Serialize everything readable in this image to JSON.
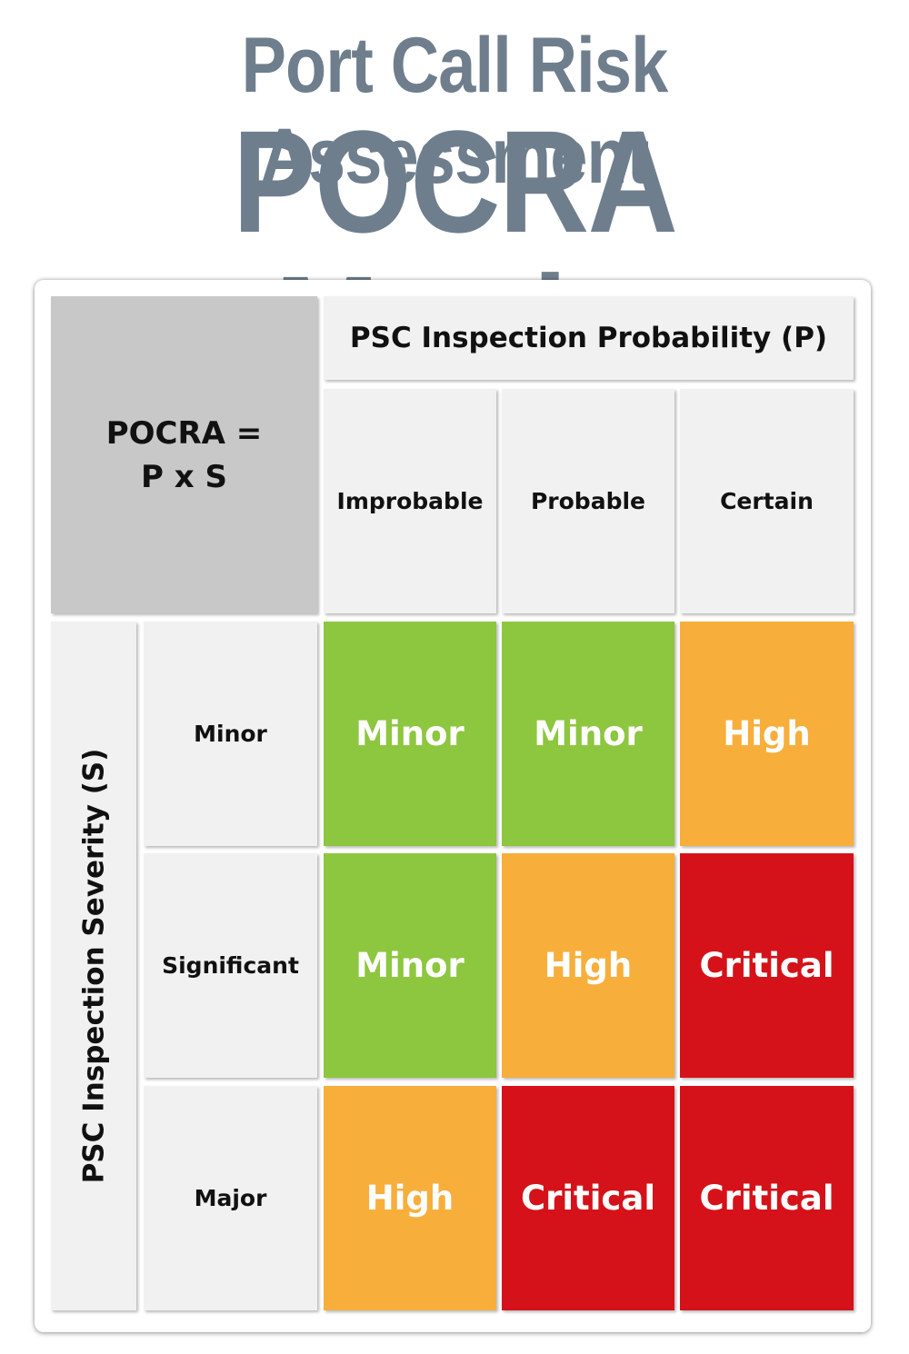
{
  "title": {
    "line1": "Port Call Risk Assessment",
    "line2": "POCRA Matrix"
  },
  "matrix": {
    "corner_line1": "POCRA =",
    "corner_line2": "P x S",
    "probability_axis": "PSC Inspection Probability (P)",
    "severity_axis": "PSC Inspection Severity (S)",
    "columns": [
      "Improbable",
      "Probable",
      "Certain"
    ],
    "rows": [
      "Minor",
      "Significant",
      "Major"
    ],
    "cells": [
      [
        "Minor",
        "Minor",
        "High"
      ],
      [
        "Minor",
        "High",
        "Critical"
      ],
      [
        "High",
        "Critical",
        "Critical"
      ]
    ]
  },
  "colors": {
    "title": "#6f7e8d",
    "Minor": "#8dc63f",
    "High": "#f7ae3b",
    "Critical": "#d51219",
    "header_bg": "#f1f1f1",
    "corner_bg": "#c8c8c8"
  }
}
